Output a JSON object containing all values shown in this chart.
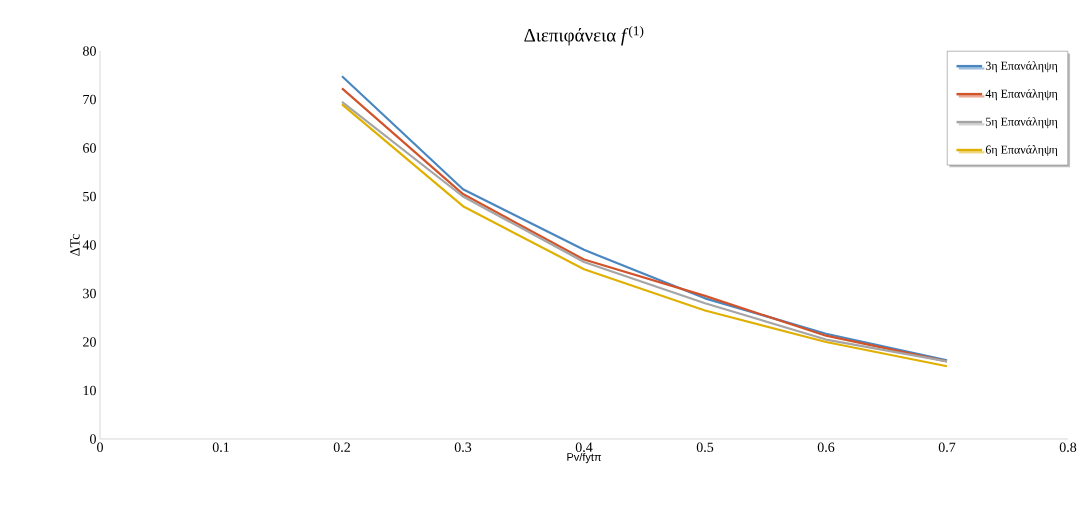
{
  "chart_data": {
    "type": "line",
    "title": "Διεπιφάνεια *f*$^{(1)}$",
    "xlabel": "Pv/fytπ",
    "ylabel": "ΔTc",
    "x": [
      0.2,
      0.3,
      0.4,
      0.5,
      0.6,
      0.7
    ],
    "series": [
      {
        "name": "3η Επανάληψη",
        "color": "#4a86c0",
        "values": [
          74.8,
          51.5,
          39,
          29,
          21.7,
          16.2
        ]
      },
      {
        "name": "4η Επανάληψη",
        "color": "#d2532a",
        "values": [
          72.3,
          50.5,
          37,
          29.5,
          21.3,
          16
        ]
      },
      {
        "name": "5η Επανάληψη",
        "color": "#a5a5a5",
        "values": [
          69.5,
          50,
          36.5,
          28,
          20.5,
          16
        ]
      },
      {
        "name": "6η Επανάληψη",
        "color": "#e0b000",
        "values": [
          69,
          48,
          35,
          26.5,
          20,
          15
        ]
      }
    ],
    "xlim": [
      0,
      0.8
    ],
    "ylim": [
      0,
      80
    ],
    "xticks": [
      0,
      0.1,
      0.2,
      0.3,
      0.4,
      0.5,
      0.6,
      0.7,
      0.8
    ],
    "yticks": [
      0,
      10,
      20,
      30,
      40,
      50,
      60,
      70,
      80
    ],
    "grid": false,
    "legend": "top right",
    "marker": "none",
    "line_style": "solid"
  }
}
